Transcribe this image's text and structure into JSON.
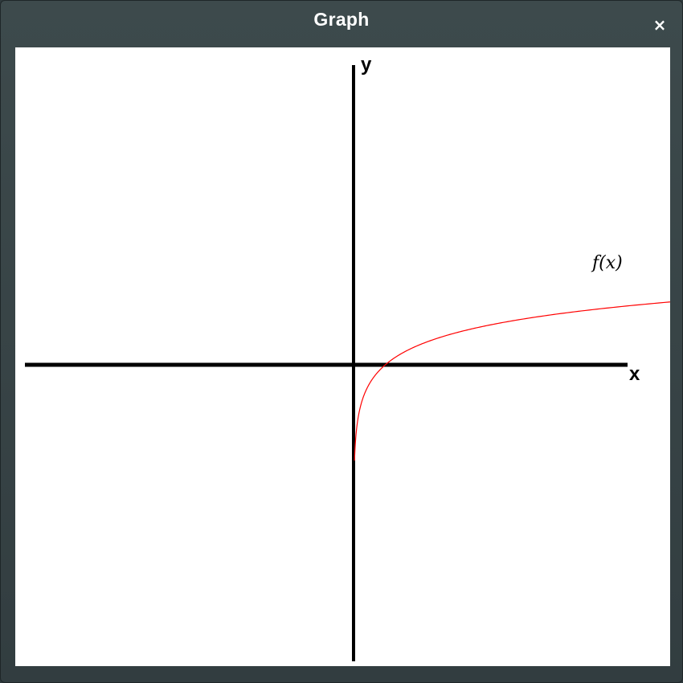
{
  "window": {
    "title": "Graph",
    "close_glyph": "×"
  },
  "chart_data": {
    "type": "line",
    "xlabel": "x",
    "ylabel": "y",
    "series": [
      {
        "name": "f(x)",
        "color": "#ff0000",
        "function": "ln(x)",
        "x_range": [
          0.03,
          20
        ]
      }
    ]
  }
}
